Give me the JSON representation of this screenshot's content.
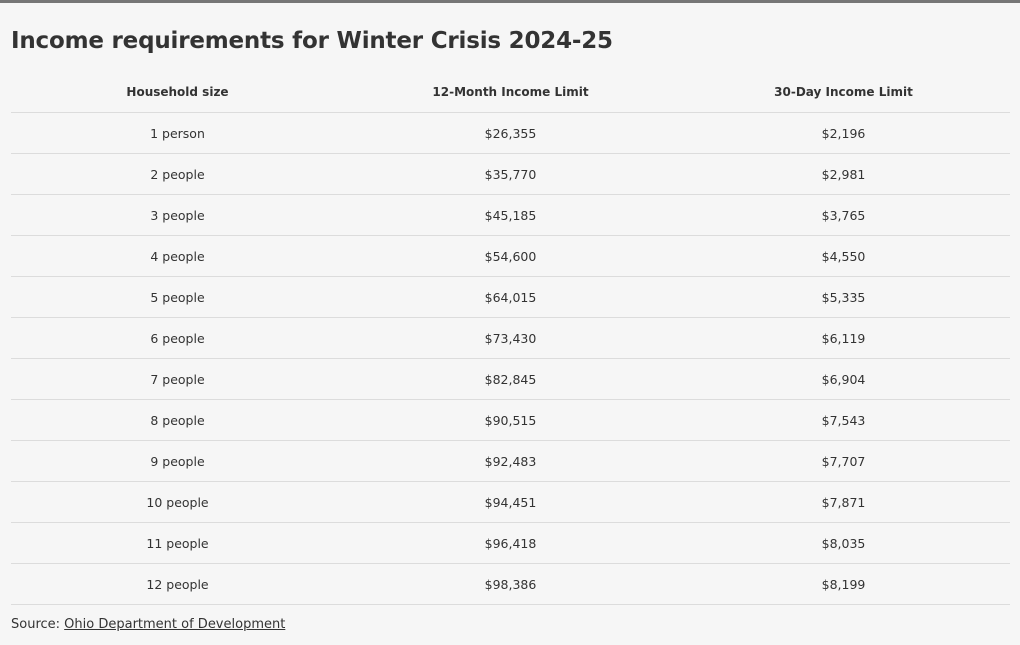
{
  "chart_data": {
    "type": "table",
    "title": "Income requirements for Winter Crisis 2024-25",
    "columns": [
      "Household size",
      "12-Month Income Limit",
      "30-Day Income Limit"
    ],
    "rows": [
      [
        "1 person",
        "$26,355",
        "$2,196"
      ],
      [
        "2 people",
        "$35,770",
        "$2,981"
      ],
      [
        "3 people",
        "$45,185",
        "$3,765"
      ],
      [
        "4 people",
        "$54,600",
        "$4,550"
      ],
      [
        "5 people",
        "$64,015",
        "$5,335"
      ],
      [
        "6 people",
        "$73,430",
        "$6,119"
      ],
      [
        "7 people",
        "$82,845",
        "$6,904"
      ],
      [
        "8 people",
        "$90,515",
        "$7,543"
      ],
      [
        "9 people",
        "$92,483",
        "$7,707"
      ],
      [
        "10 people",
        "$94,451",
        "$7,871"
      ],
      [
        "11 people",
        "$96,418",
        "$8,035"
      ],
      [
        "12 people",
        "$98,386",
        "$8,199"
      ]
    ]
  },
  "source": {
    "label": "Source: ",
    "link_text": "Ohio Department of Development"
  }
}
